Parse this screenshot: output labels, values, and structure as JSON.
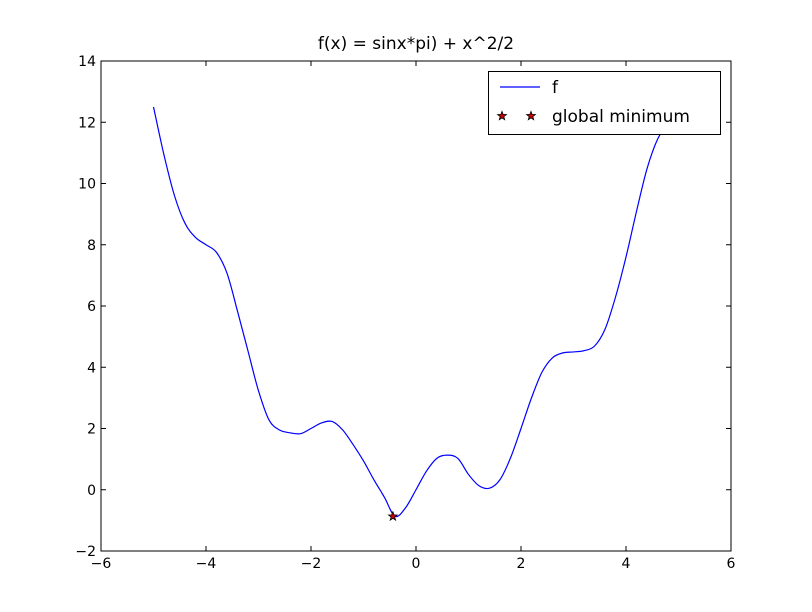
{
  "chart_data": {
    "type": "line",
    "title": "f(x) = sinx*pi) + x^2/2",
    "xlabel": "",
    "ylabel": "",
    "xlim": [
      -6,
      6
    ],
    "ylim": [
      -2,
      14
    ],
    "xticks": [
      -6,
      -4,
      -2,
      0,
      2,
      4,
      6
    ],
    "yticks": [
      -2,
      0,
      2,
      4,
      6,
      8,
      10,
      12,
      14
    ],
    "xtick_labels": [
      "−6",
      "−4",
      "−2",
      "0",
      "2",
      "4",
      "6"
    ],
    "ytick_labels": [
      "−2",
      "0",
      "2",
      "4",
      "6",
      "8",
      "10",
      "12",
      "14"
    ],
    "grid": false,
    "legend_position": "top-right",
    "series": [
      {
        "name": "f",
        "kind": "line",
        "color": "#0000ff",
        "x": [
          -5.0,
          -4.8,
          -4.6,
          -4.4,
          -4.2,
          -4.0,
          -3.8,
          -3.6,
          -3.4,
          -3.2,
          -3.0,
          -2.8,
          -2.6,
          -2.4,
          -2.2,
          -2.0,
          -1.8,
          -1.6,
          -1.4,
          -1.2,
          -1.0,
          -0.8,
          -0.6,
          -0.4,
          -0.2,
          0.0,
          0.2,
          0.4,
          0.6,
          0.8,
          1.0,
          1.2,
          1.4,
          1.6,
          1.8,
          2.0,
          2.2,
          2.4,
          2.6,
          2.8,
          3.0,
          3.2,
          3.4,
          3.6,
          3.8,
          4.0,
          4.2,
          4.4,
          4.6,
          4.8
        ],
        "y": [
          12.5,
          10.93,
          9.6,
          8.7,
          8.24,
          8.0,
          7.75,
          7.07,
          5.83,
          4.53,
          3.23,
          2.28,
          1.95,
          1.86,
          1.83,
          2.0,
          2.18,
          2.23,
          1.96,
          1.48,
          0.94,
          0.32,
          -0.25,
          -0.87,
          -0.59,
          0.0,
          0.61,
          1.03,
          1.13,
          1.02,
          0.5,
          0.13,
          0.05,
          0.33,
          1.04,
          2.0,
          3.0,
          3.84,
          4.31,
          4.47,
          4.5,
          4.54,
          4.69,
          5.24,
          6.29,
          7.6,
          9.09,
          10.48,
          11.44,
          11.97
        ]
      },
      {
        "name": "global minimum",
        "kind": "marker",
        "color": "#cc0000",
        "x": [
          -0.44
        ],
        "y": [
          -0.87
        ]
      }
    ]
  }
}
